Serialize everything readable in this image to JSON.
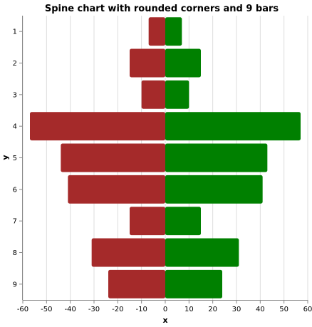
{
  "chart_data": {
    "type": "bar",
    "orientation": "horizontal",
    "title": "Spine chart with rounded corners and 9 bars",
    "xlabel": "x",
    "ylabel": "y",
    "categories": [
      "1",
      "2",
      "3",
      "4",
      "5",
      "6",
      "7",
      "8",
      "9"
    ],
    "series": [
      {
        "values": [
          -7,
          -15,
          -10,
          -57,
          -44,
          -41,
          -15,
          -31,
          -24
        ],
        "color": "#a52a2a"
      },
      {
        "values": [
          7,
          15,
          10,
          57,
          43,
          41,
          15,
          31,
          24
        ],
        "color": "#008000"
      }
    ],
    "xlim": [
      -60,
      60
    ],
    "xticks": [
      -60,
      -50,
      -40,
      -30,
      -20,
      -10,
      0,
      10,
      20,
      30,
      40,
      50,
      60
    ],
    "grid": true,
    "legend": "none"
  }
}
